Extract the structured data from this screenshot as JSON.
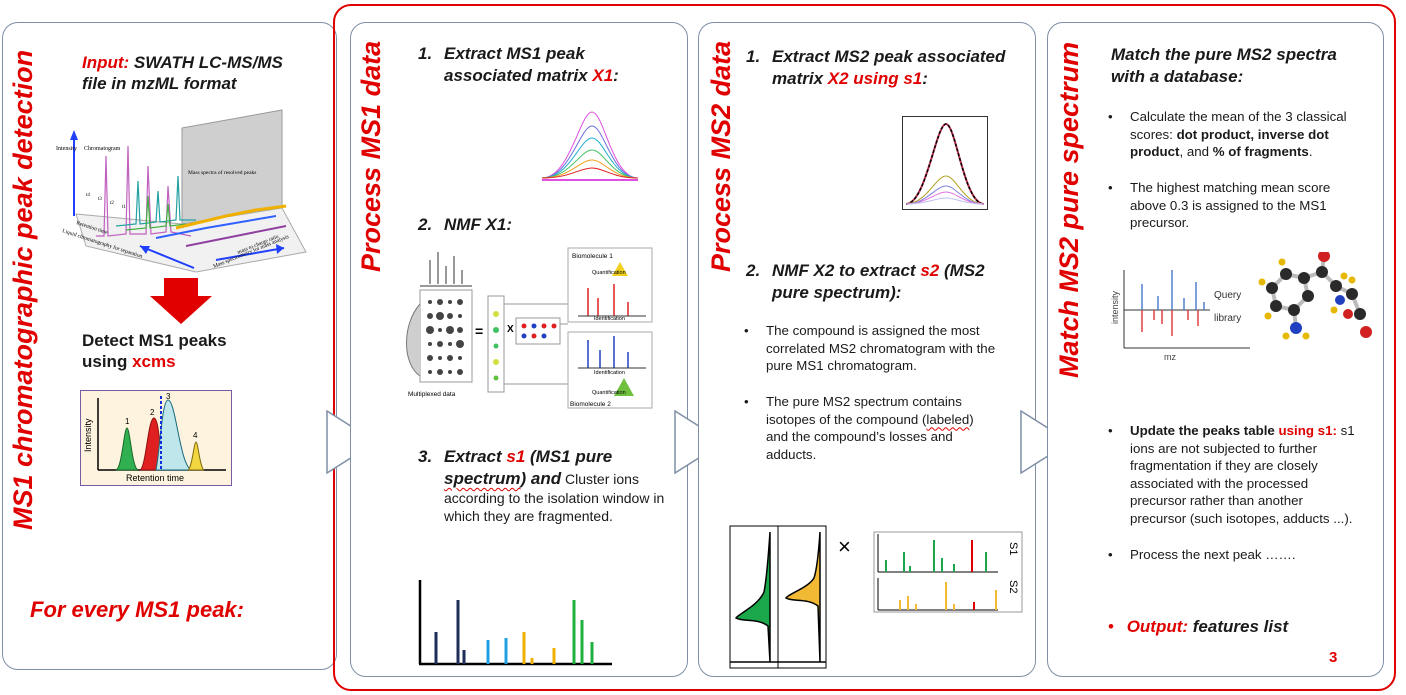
{
  "colors": {
    "accent_red": "#e00000",
    "panel_border": "#7f8fa6"
  },
  "panel1": {
    "title": "MS1 chromatographic peak detection",
    "input_label": "Input:",
    "input_text_l1": " SWATH LC-MS/MS",
    "input_text_l2": "file in mzML format",
    "fig3d": {
      "intensity": "Intensity",
      "chromatogram": "Chromatogram",
      "mass_spectra": "Mass spectra of resolved peaks",
      "retention": "Retention time",
      "lc": "Liquid chromatography for separation",
      "mz": "mass to charge ratio",
      "ms": "Mass spectrometry for mass analysis",
      "tlabels": [
        "t4",
        "t3",
        "t2",
        "t1"
      ]
    },
    "detect_l1": "Detect MS1 peaks",
    "detect_l2_pre": "using ",
    "detect_l2_red": "xcms",
    "peaks_fig": {
      "ylabel": "Intensity",
      "xlabel": "Retention time",
      "labels": [
        "1",
        "2",
        "3",
        "4"
      ]
    },
    "footer": "For every MS1 peak:"
  },
  "panel2": {
    "title": "Process MS1 data",
    "s1_num": "1.",
    "s1_l1": "Extract MS1 peak",
    "s1_l2_pre": "associated matrix ",
    "s1_l2_red": "X1",
    "s1_l2_post": ":",
    "s2_num": "2.",
    "s2_text": "NMF X1:",
    "nmf_fig": {
      "bio1": "Biomolecule 1",
      "quant1": "Quantification",
      "ident1": "Identification",
      "ident2": "Identification",
      "quant2": "Quantification",
      "bio2": "Biomolecule 2",
      "multiplexed": "Multiplexed data",
      "eq": "=",
      "x": "X"
    },
    "s3_num": "3.",
    "s3_pre": "Extract ",
    "s3_red": "s1",
    "s3_mid": " (MS1 pure",
    "s3_l2_sq": "spectrum",
    "s3_l2_b": ") and",
    "s3_l2_n": " Cluster ions",
    "s3_l3": "according to the isolation window in",
    "s3_l4": "which they are fragmented."
  },
  "panel3": {
    "title": "Process MS2 data",
    "s1_num": "1.",
    "s1_l1": "Extract MS2 peak associated",
    "s1_l2_pre": "matrix ",
    "s1_l2_red": "X2 using s1",
    "s1_l2_post": ":",
    "s2_num": "2.",
    "s2_l1_pre": "NMF X2 to extract ",
    "s2_l1_red": "s2",
    "s2_l1_post": " (MS2",
    "s2_l2": "pure spectrum):",
    "b1_l1": "The compound is assigned the most",
    "b1_l2": "correlated MS2 chromatogram with the",
    "b1_l3": "pure MS1 chromatogram.",
    "b2_l1": "The pure MS2 spectrum contains",
    "b2_l2_pre": "isotopes of the compound (",
    "b2_l2_sq": "labeled",
    "b2_l2_post": ")",
    "b2_l3": "and the compound’s losses and",
    "b2_l4": "adducts.",
    "times": "×",
    "s1_lbl": "S1",
    "s2_lbl": "S2"
  },
  "panel4": {
    "title": "Match MS2 pure spectrum",
    "head_l1": "Match the pure MS2 spectra",
    "head_l2": "with a database:",
    "b1_l1": "Calculate the mean of the 3 classical",
    "b1_l2_pre": "scores: ",
    "b1_l2_b": "dot product, inverse dot",
    "b1_l3_b": "product",
    "b1_l3_mid": ", and ",
    "b1_l3_b2": "% of fragments",
    "b1_l3_end": ".",
    "b2_l1": "The highest matching mean score",
    "b2_l2": "above 0.3 is assigned to the MS1",
    "b2_l3": "precursor.",
    "mirror": {
      "ylabel": "intensity",
      "xlabel": "mz",
      "query": "Query",
      "library": "library"
    },
    "b3_b": "Update the peaks table ",
    "b3_red": "using s1:",
    "b3_l1_post": " s1",
    "b3_l2": "ions are not subjected to further",
    "b3_l3": "fragmentation if they are closely",
    "b3_l4": "associated with the processed",
    "b3_l5": "precursor rather than another",
    "b3_l6": "precursor (such isotopes, adducts ...).",
    "b4": "Process the next peak …….",
    "output_label": "Output:",
    "output_text": " features list",
    "page_number": "3",
    "bullet": "•"
  }
}
